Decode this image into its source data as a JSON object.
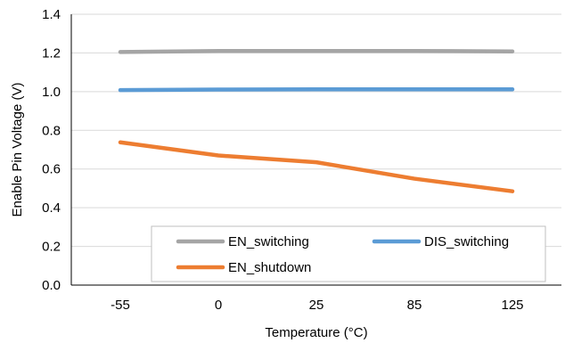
{
  "chart_data": {
    "type": "line",
    "title": "",
    "xlabel": "Temperature (°C)",
    "ylabel": "Enable Pin Voltage (V)",
    "x": [
      "-55",
      "0",
      "25",
      "85",
      "125"
    ],
    "ylim": [
      0,
      1.4
    ],
    "y_ticks": [
      "0.0",
      "0.2",
      "0.4",
      "0.6",
      "0.8",
      "1.0",
      "1.2",
      "1.4"
    ],
    "grid": "horizontal",
    "legend_position": "bottom-right, inside plot",
    "series": [
      {
        "name": "EN_switching",
        "color": "#a5a5a5",
        "values": [
          1.205,
          1.21,
          1.21,
          1.21,
          1.208
        ]
      },
      {
        "name": "DIS_switching",
        "color": "#5b9bd5",
        "values": [
          1.008,
          1.011,
          1.012,
          1.012,
          1.012
        ]
      },
      {
        "name": "EN_shutdown",
        "color": "#ed7d31",
        "values": [
          0.738,
          0.67,
          0.635,
          0.55,
          0.485
        ]
      }
    ]
  }
}
